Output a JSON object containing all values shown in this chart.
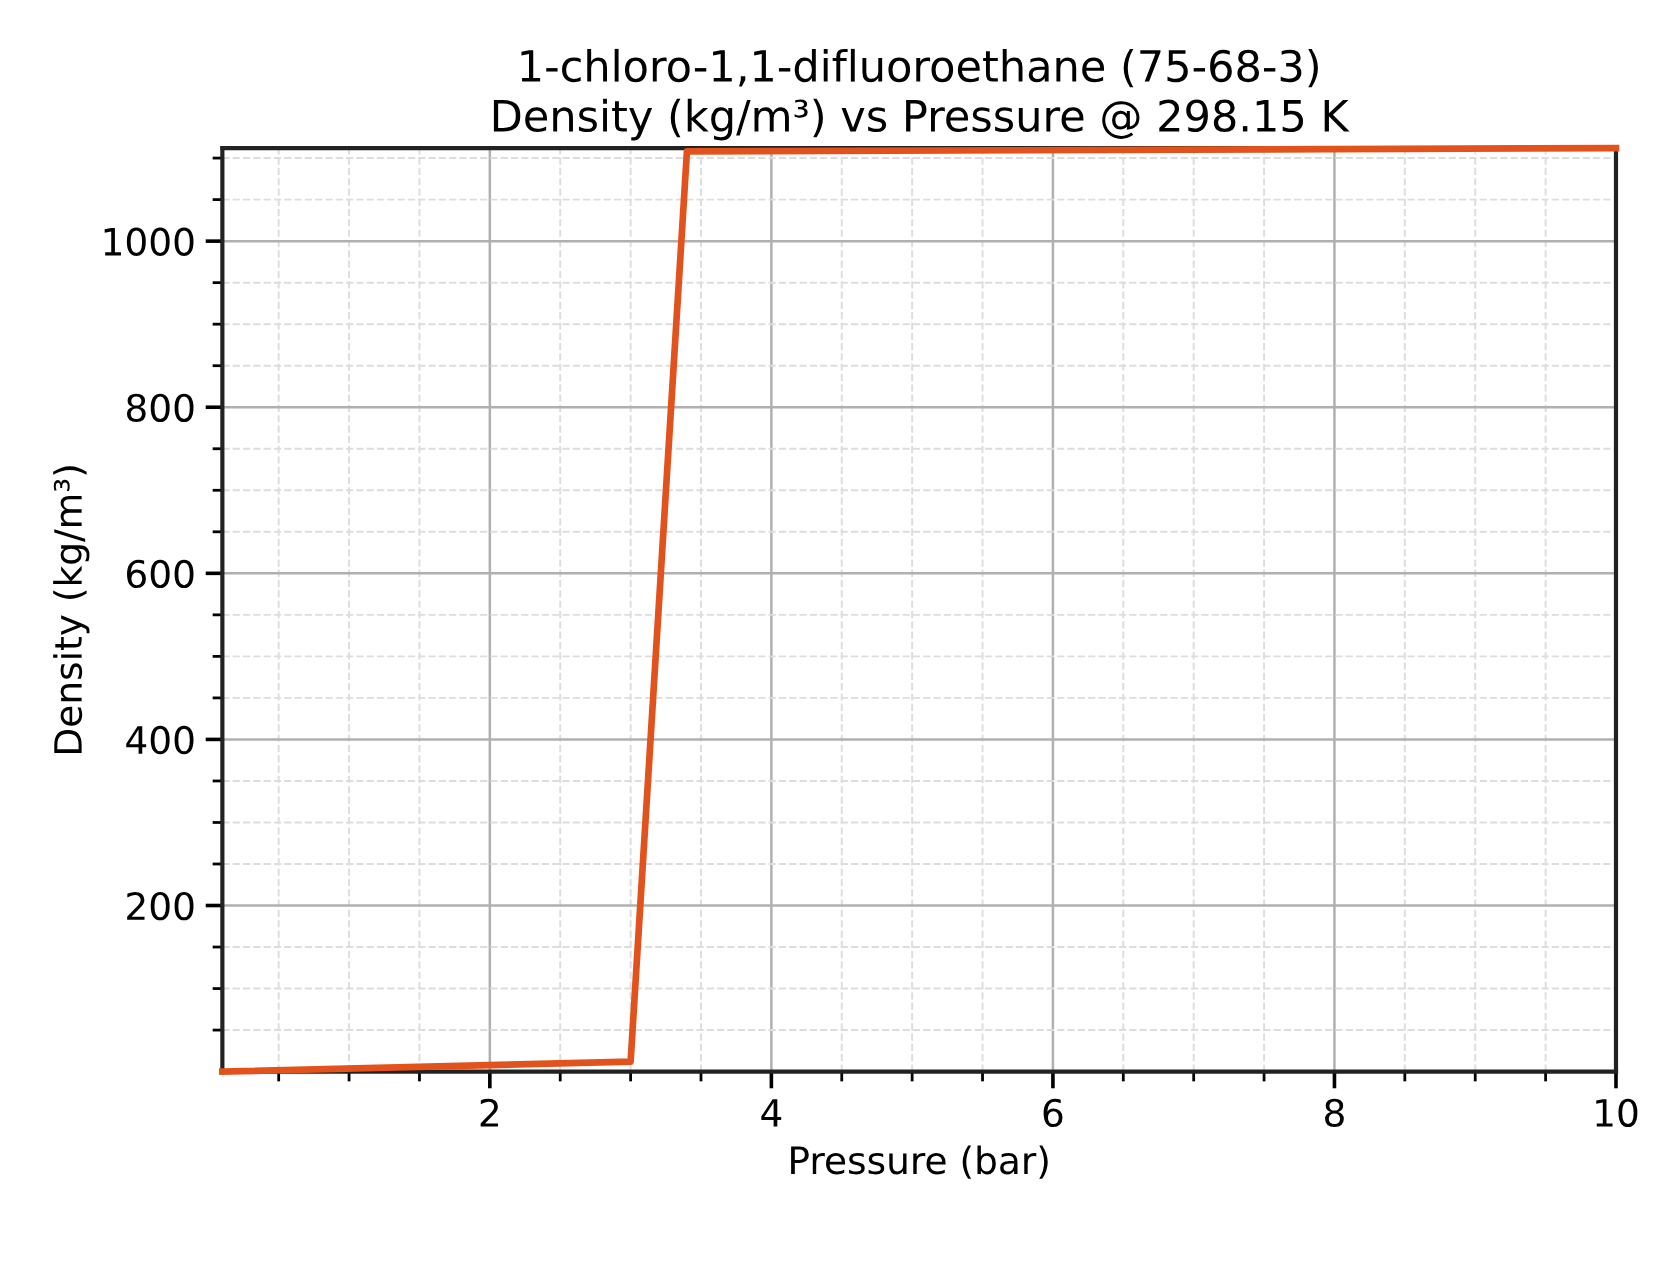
{
  "chart_data": {
    "type": "line",
    "title": "1-chloro-1,1-difluoroethane (75-68-3)\nDensity (kg/m³) vs Pressure @ 298.15 K",
    "xlabel": "Pressure (bar)",
    "ylabel": "Density (kg/m³)",
    "x": [
      0.1,
      3.0,
      3.4,
      10
    ],
    "series": [
      {
        "color": "#e2521d",
        "values": [
          0,
          12,
          1108,
          1112
        ]
      }
    ],
    "xlim": [
      0.1,
      10
    ],
    "xticks": [
      {
        "value": 0.5,
        "label": null
      },
      {
        "value": 1,
        "label": null
      },
      {
        "value": 1.5,
        "label": null
      },
      2,
      {
        "value": 2.5,
        "label": null
      },
      {
        "value": 3,
        "label": null
      },
      {
        "value": 3.5,
        "label": null
      },
      4,
      {
        "value": 4.5,
        "label": null
      },
      {
        "value": 5,
        "label": null
      },
      {
        "value": 5.5,
        "label": null
      },
      6,
      {
        "value": 6.5,
        "label": null
      },
      {
        "value": 7,
        "label": null
      },
      {
        "value": 7.5,
        "label": null
      },
      8,
      {
        "value": 8.5,
        "label": null
      },
      {
        "value": 9,
        "label": null
      },
      {
        "value": 9.5,
        "label": null
      },
      10
    ],
    "ylim": [
      0,
      1112
    ],
    "yticks": [
      {
        "value": 50,
        "label": null
      },
      {
        "value": 100,
        "label": null
      },
      {
        "value": 150,
        "label": null
      },
      200,
      {
        "value": 250,
        "label": null
      },
      {
        "value": 300,
        "label": null
      },
      {
        "value": 350,
        "label": null
      },
      400,
      {
        "value": 450,
        "label": null
      },
      {
        "value": 500,
        "label": null
      },
      {
        "value": 550,
        "label": null
      },
      600,
      {
        "value": 650,
        "label": null
      },
      {
        "value": 700,
        "label": null
      },
      {
        "value": 750,
        "label": null
      },
      800,
      {
        "value": 850,
        "label": null
      },
      {
        "value": 900,
        "label": null
      },
      {
        "value": 950,
        "label": null
      },
      1000,
      {
        "value": 1050,
        "label": null
      },
      {
        "value": 1100,
        "label": null
      }
    ],
    "grid": true,
    "marker": "none",
    "line_style": "solid"
  }
}
